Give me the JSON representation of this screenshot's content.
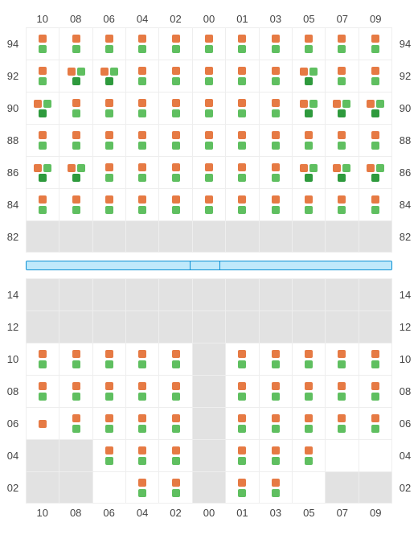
{
  "colors": {
    "orange": "#e67a44",
    "green": "#5fbf60",
    "darkgreen": "#2e9a3d",
    "inactive_bg": "#e2e2e2",
    "grid_line": "#eeeeee",
    "sep_border": "#0a8fd4",
    "sep_fill": "#bfe9fb",
    "text": "#444444",
    "bg": "#ffffff"
  },
  "columns": [
    "10",
    "08",
    "06",
    "04",
    "02",
    "00",
    "01",
    "03",
    "05",
    "07",
    "09"
  ],
  "upper": {
    "rows": [
      "94",
      "92",
      "90",
      "88",
      "86",
      "84",
      "82"
    ],
    "cells": {
      "94": [
        [
          "o",
          "g"
        ],
        [
          "o",
          "g"
        ],
        [
          "o",
          "g"
        ],
        [
          "o",
          "g"
        ],
        [
          "o",
          "g"
        ],
        [
          "o",
          "g"
        ],
        [
          "o",
          "g"
        ],
        [
          "o",
          "g"
        ],
        [
          "o",
          "g"
        ],
        [
          "o",
          "g"
        ],
        [
          "o",
          "g"
        ]
      ],
      "92": [
        [
          "o",
          "g"
        ],
        [
          "o",
          "g",
          "dg"
        ],
        [
          "o",
          "g",
          "dg"
        ],
        [
          "o",
          "g"
        ],
        [
          "o",
          "g"
        ],
        [
          "o",
          "g"
        ],
        [
          "o",
          "g"
        ],
        [
          "o",
          "g"
        ],
        [
          "o",
          "g",
          "dg"
        ],
        [
          "o",
          "g"
        ],
        [
          "o",
          "g"
        ]
      ],
      "90": [
        [
          "o",
          "g",
          "dg"
        ],
        [
          "o",
          "g"
        ],
        [
          "o",
          "g"
        ],
        [
          "o",
          "g"
        ],
        [
          "o",
          "g"
        ],
        [
          "o",
          "g"
        ],
        [
          "o",
          "g"
        ],
        [
          "o",
          "g"
        ],
        [
          "o",
          "g",
          "dg"
        ],
        [
          "o",
          "g",
          "dg"
        ],
        [
          "o",
          "g",
          "dg"
        ]
      ],
      "88": [
        [
          "o",
          "g"
        ],
        [
          "o",
          "g"
        ],
        [
          "o",
          "g"
        ],
        [
          "o",
          "g"
        ],
        [
          "o",
          "g"
        ],
        [
          "o",
          "g"
        ],
        [
          "o",
          "g"
        ],
        [
          "o",
          "g"
        ],
        [
          "o",
          "g"
        ],
        [
          "o",
          "g"
        ],
        [
          "o",
          "g"
        ]
      ],
      "86": [
        [
          "o",
          "g",
          "dg"
        ],
        [
          "o",
          "g",
          "dg"
        ],
        [
          "o",
          "g"
        ],
        [
          "o",
          "g"
        ],
        [
          "o",
          "g"
        ],
        [
          "o",
          "g"
        ],
        [
          "o",
          "g"
        ],
        [
          "o",
          "g"
        ],
        [
          "o",
          "g",
          "dg"
        ],
        [
          "o",
          "g",
          "dg"
        ],
        [
          "o",
          "g",
          "dg"
        ]
      ],
      "84": [
        [
          "o",
          "g"
        ],
        [
          "o",
          "g"
        ],
        [
          "o",
          "g"
        ],
        [
          "o",
          "g"
        ],
        [
          "o",
          "g"
        ],
        [
          "o",
          "g"
        ],
        [
          "o",
          "g"
        ],
        [
          "o",
          "g"
        ],
        [
          "o",
          "g"
        ],
        [
          "o",
          "g"
        ],
        [
          "o",
          "g"
        ]
      ],
      "82": [
        null,
        null,
        null,
        null,
        null,
        null,
        null,
        null,
        null,
        null,
        null
      ]
    }
  },
  "separator_segments": [
    45,
    8,
    47
  ],
  "lower": {
    "rows": [
      "14",
      "12",
      "10",
      "08",
      "06",
      "04",
      "02"
    ],
    "cells": {
      "14": [
        null,
        null,
        null,
        null,
        null,
        null,
        null,
        null,
        null,
        null,
        null
      ],
      "12": [
        null,
        null,
        null,
        null,
        null,
        null,
        null,
        null,
        null,
        null,
        null
      ],
      "10": [
        [
          "o",
          "g"
        ],
        [
          "o",
          "g"
        ],
        [
          "o",
          "g"
        ],
        [
          "o",
          "g"
        ],
        [
          "o",
          "g"
        ],
        null,
        [
          "o",
          "g"
        ],
        [
          "o",
          "g"
        ],
        [
          "o",
          "g"
        ],
        [
          "o",
          "g"
        ],
        [
          "o",
          "g"
        ]
      ],
      "08": [
        [
          "o",
          "g"
        ],
        [
          "o",
          "g"
        ],
        [
          "o",
          "g"
        ],
        [
          "o",
          "g"
        ],
        [
          "o",
          "g"
        ],
        null,
        [
          "o",
          "g"
        ],
        [
          "o",
          "g"
        ],
        [
          "o",
          "g"
        ],
        [
          "o",
          "g"
        ],
        [
          "o",
          "g"
        ]
      ],
      "06": [
        [
          "o"
        ],
        [
          "o",
          "g"
        ],
        [
          "o",
          "g"
        ],
        [
          "o",
          "g"
        ],
        [
          "o",
          "g"
        ],
        null,
        [
          "o",
          "g"
        ],
        [
          "o",
          "g"
        ],
        [
          "o",
          "g"
        ],
        [
          "o",
          "g"
        ],
        [
          "o",
          "g"
        ]
      ],
      "04": [
        null,
        null,
        [
          "o",
          "g"
        ],
        [
          "o",
          "g"
        ],
        [
          "o",
          "g"
        ],
        null,
        [
          "o",
          "g"
        ],
        [
          "o",
          "g"
        ],
        [
          "o",
          "g"
        ],
        [],
        []
      ],
      "02": [
        null,
        null,
        [],
        [
          "o",
          "g"
        ],
        [
          "o",
          "g"
        ],
        null,
        [
          "o",
          "g"
        ],
        [
          "o",
          "g"
        ],
        [],
        null,
        null
      ]
    }
  }
}
